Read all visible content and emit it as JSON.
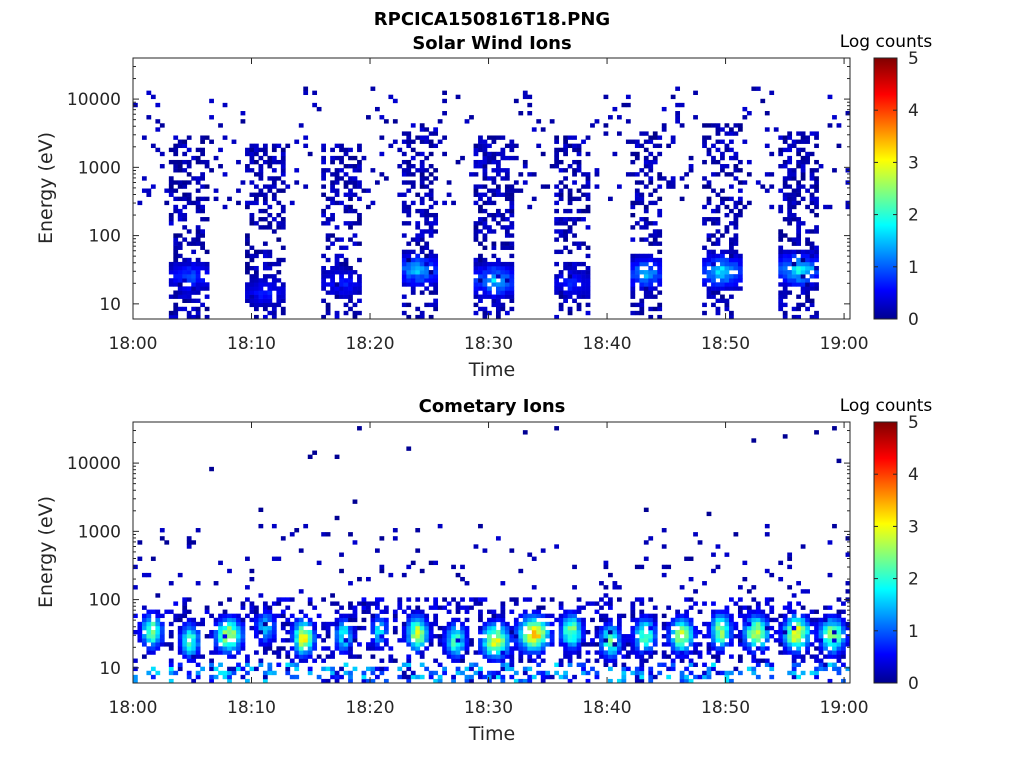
{
  "figure": {
    "title": "RPCICA150816T18.PNG"
  },
  "chart_data": [
    {
      "type": "heatmap",
      "title": "Solar Wind Ions",
      "xlabel": "Time",
      "ylabel": "Energy (eV)",
      "x_ticks": [
        "18:00",
        "18:10",
        "18:20",
        "18:30",
        "18:40",
        "18:50",
        "19:00"
      ],
      "x_range_minutes": [
        0,
        60.5
      ],
      "y_scale": "log",
      "y_ticks": [
        "10",
        "100",
        "1000",
        "10000"
      ],
      "y_range": [
        6,
        40000
      ],
      "colorbar": {
        "label": "Log counts",
        "min": 0,
        "max": 5,
        "ticks": [
          "0",
          "1",
          "2",
          "3",
          "4",
          "5"
        ],
        "colormap": "jet"
      },
      "bursts": [
        {
          "t_start_min": 3.2,
          "t_end_min": 6.4,
          "e_max_ev": 2000,
          "peak_e_ev": 25,
          "peak_log": 1.3
        },
        {
          "t_start_min": 9.5,
          "t_end_min": 12.8,
          "e_max_ev": 1500,
          "peak_e_ev": 15,
          "peak_log": 1.0
        },
        {
          "t_start_min": 16.0,
          "t_end_min": 19.2,
          "e_max_ev": 1500,
          "peak_e_ev": 20,
          "peak_log": 1.0
        },
        {
          "t_start_min": 22.5,
          "t_end_min": 25.7,
          "e_max_ev": 3000,
          "peak_e_ev": 32,
          "peak_log": 2.0
        },
        {
          "t_start_min": 28.9,
          "t_end_min": 32.2,
          "e_max_ev": 2000,
          "peak_e_ev": 22,
          "peak_log": 2.0
        },
        {
          "t_start_min": 35.4,
          "t_end_min": 38.6,
          "e_max_ev": 2000,
          "peak_e_ev": 20,
          "peak_log": 1.0
        },
        {
          "t_start_min": 41.8,
          "t_end_min": 44.6,
          "e_max_ev": 2500,
          "peak_e_ev": 28,
          "peak_log": 1.9
        },
        {
          "t_start_min": 48.1,
          "t_end_min": 51.3,
          "e_max_ev": 3000,
          "peak_e_ev": 30,
          "peak_log": 2.2
        },
        {
          "t_start_min": 54.6,
          "t_end_min": 57.8,
          "e_max_ev": 2500,
          "peak_e_ev": 32,
          "peak_log": 2.4
        }
      ]
    },
    {
      "type": "heatmap",
      "title": "Cometary Ions",
      "xlabel": "Time",
      "ylabel": "Energy (eV)",
      "x_ticks": [
        "18:00",
        "18:10",
        "18:20",
        "18:30",
        "18:40",
        "18:50",
        "19:00"
      ],
      "x_range_minutes": [
        0,
        60.5
      ],
      "y_scale": "log",
      "y_ticks": [
        "10",
        "100",
        "1000",
        "10000"
      ],
      "y_range": [
        6,
        40000
      ],
      "colorbar": {
        "label": "Log counts",
        "min": 0,
        "max": 5,
        "ticks": [
          "0",
          "1",
          "2",
          "3",
          "4",
          "5"
        ],
        "colormap": "jet"
      },
      "blobs": [
        {
          "t_center_min": 1.6,
          "half_width_min": 0.9,
          "e_center_ev": 35,
          "peak_log": 2.8
        },
        {
          "t_center_min": 4.8,
          "half_width_min": 0.8,
          "e_center_ev": 25,
          "peak_log": 2.6
        },
        {
          "t_center_min": 8.1,
          "half_width_min": 1.1,
          "e_center_ev": 30,
          "peak_log": 3.3
        },
        {
          "t_center_min": 11.2,
          "half_width_min": 0.9,
          "e_center_ev": 40,
          "peak_log": 1.8
        },
        {
          "t_center_min": 14.4,
          "half_width_min": 0.9,
          "e_center_ev": 28,
          "peak_log": 3.5
        },
        {
          "t_center_min": 17.8,
          "half_width_min": 0.8,
          "e_center_ev": 30,
          "peak_log": 2.2
        },
        {
          "t_center_min": 20.8,
          "half_width_min": 0.7,
          "e_center_ev": 35,
          "peak_log": 2.0
        },
        {
          "t_center_min": 24.0,
          "half_width_min": 0.9,
          "e_center_ev": 32,
          "peak_log": 3.2
        },
        {
          "t_center_min": 27.2,
          "half_width_min": 0.9,
          "e_center_ev": 25,
          "peak_log": 2.5
        },
        {
          "t_center_min": 30.6,
          "half_width_min": 1.2,
          "e_center_ev": 25,
          "peak_log": 3.4
        },
        {
          "t_center_min": 33.8,
          "half_width_min": 1.3,
          "e_center_ev": 32,
          "peak_log": 3.9
        },
        {
          "t_center_min": 37.0,
          "half_width_min": 0.9,
          "e_center_ev": 35,
          "peak_log": 2.9
        },
        {
          "t_center_min": 40.3,
          "half_width_min": 0.9,
          "e_center_ev": 25,
          "peak_log": 2.6
        },
        {
          "t_center_min": 43.2,
          "half_width_min": 0.9,
          "e_center_ev": 30,
          "peak_log": 2.8
        },
        {
          "t_center_min": 46.3,
          "half_width_min": 1.0,
          "e_center_ev": 30,
          "peak_log": 3.2
        },
        {
          "t_center_min": 49.6,
          "half_width_min": 0.9,
          "e_center_ev": 35,
          "peak_log": 3.0
        },
        {
          "t_center_min": 52.6,
          "half_width_min": 1.0,
          "e_center_ev": 32,
          "peak_log": 3.4
        },
        {
          "t_center_min": 56.0,
          "half_width_min": 1.1,
          "e_center_ev": 32,
          "peak_log": 3.6
        },
        {
          "t_center_min": 59.0,
          "half_width_min": 1.1,
          "e_center_ev": 30,
          "peak_log": 3.1
        }
      ]
    }
  ]
}
